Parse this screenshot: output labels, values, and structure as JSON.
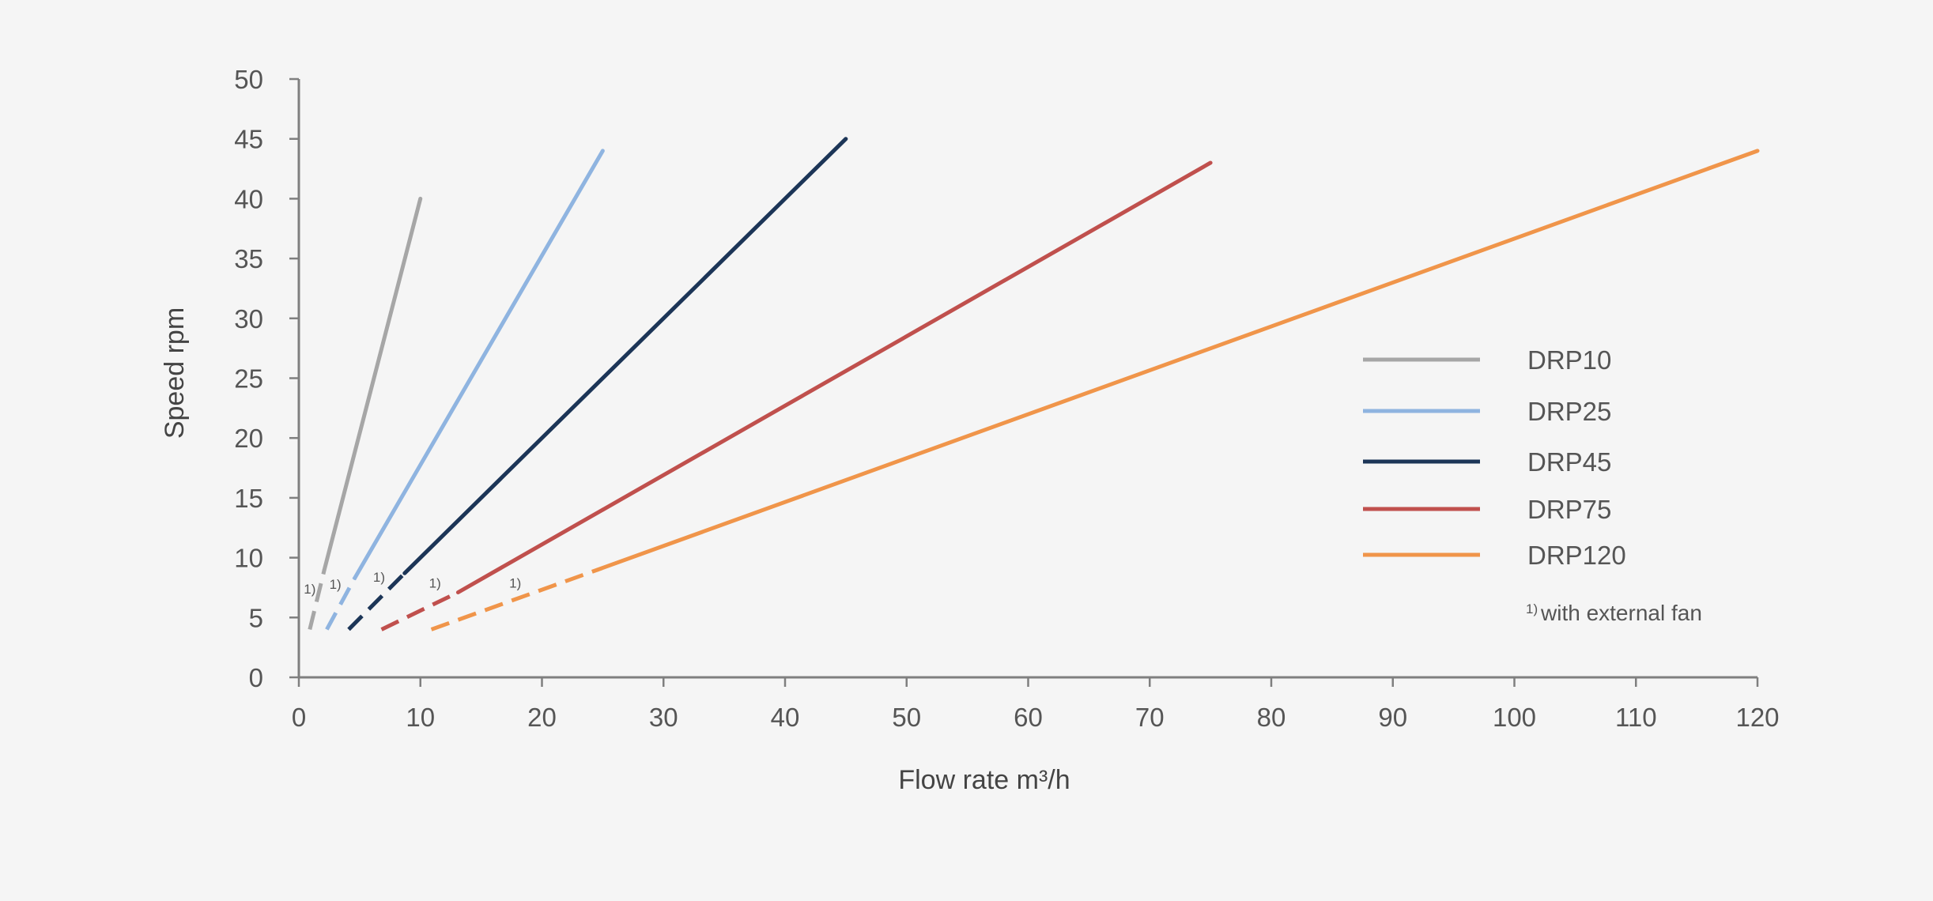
{
  "chart_data": {
    "type": "line",
    "title": "",
    "xlabel": "Flow rate m³/h",
    "ylabel": "Speed rpm",
    "xlim": [
      0,
      120
    ],
    "ylim": [
      0,
      50
    ],
    "x_ticks": [
      0,
      10,
      20,
      30,
      40,
      50,
      60,
      70,
      80,
      90,
      100,
      110,
      120
    ],
    "y_ticks": [
      0,
      5,
      10,
      15,
      20,
      25,
      30,
      35,
      40,
      45,
      50
    ],
    "grid": false,
    "legend_position": "right",
    "dashed_segment_marker": "1)",
    "footnote": {
      "marker": "1)",
      "text": "with external fan"
    },
    "series": [
      {
        "name": "DRP10",
        "color": "#a6a6a6",
        "start": [
          0.9,
          4
        ],
        "dashed_to": [
          2.1,
          9
        ],
        "end": [
          10,
          40
        ],
        "note_at": [
          0.9,
          7
        ]
      },
      {
        "name": "DRP25",
        "color": "#8fb4e0",
        "start": [
          2.3,
          4
        ],
        "dashed_to": [
          4.6,
          8.3
        ],
        "end": [
          25,
          44
        ],
        "note_at": [
          3,
          7.4
        ]
      },
      {
        "name": "DRP45",
        "color": "#1c3557",
        "start": [
          4.1,
          4
        ],
        "dashed_to": [
          8.7,
          8.7
        ],
        "end": [
          45,
          45
        ],
        "note_at": [
          6.6,
          8
        ]
      },
      {
        "name": "DRP75",
        "color": "#c0504d",
        "start": [
          6.8,
          4
        ],
        "dashed_to": [
          13.1,
          7.1
        ],
        "end": [
          75,
          43
        ],
        "note_at": [
          11.2,
          7.5
        ]
      },
      {
        "name": "DRP120",
        "color": "#f0954a",
        "start": [
          10.9,
          4
        ],
        "dashed_to": [
          24.6,
          9
        ],
        "end": [
          120,
          44
        ],
        "note_at": [
          17.8,
          7.5
        ]
      }
    ]
  }
}
